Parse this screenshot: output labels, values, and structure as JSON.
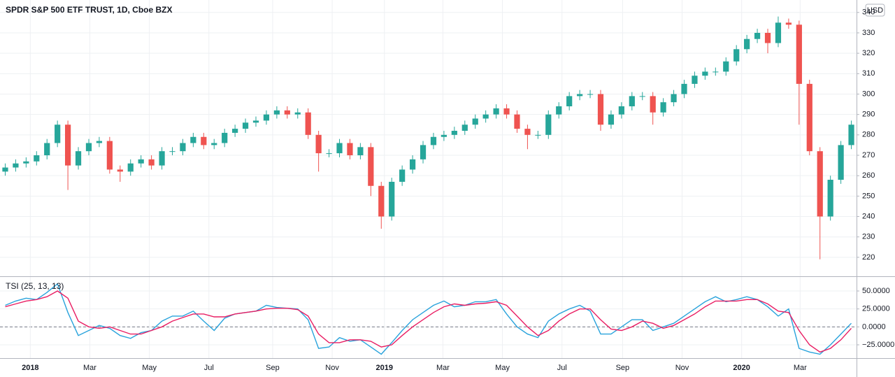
{
  "chart_data": [
    {
      "type": "candlestick",
      "title": "SPDR S&P 500 ETF TRUST, 1D, Cboe BZX",
      "currency": "USD",
      "up_color": "#26a69a",
      "down_color": "#ef5350",
      "xlim": [
        -0.5,
        81.5
      ],
      "ylim": [
        210.7,
        346.1
      ],
      "yticks": [
        220,
        230,
        240,
        250,
        260,
        270,
        280,
        290,
        300,
        310,
        320,
        330,
        340
      ],
      "open": [
        262,
        264,
        266,
        267,
        270,
        276,
        285,
        265,
        272,
        276,
        277,
        263,
        262,
        266,
        268,
        265,
        272,
        272,
        276,
        279,
        275,
        276,
        281,
        283,
        286,
        287,
        290,
        292,
        290,
        291,
        280,
        271,
        271,
        276,
        270,
        274,
        255,
        240,
        257,
        263,
        268,
        275,
        279,
        280,
        282,
        285,
        288,
        290,
        293,
        290,
        283,
        280,
        280,
        290,
        294,
        299,
        300,
        300,
        285,
        290,
        294,
        299,
        299,
        291,
        296,
        300,
        305,
        309,
        311,
        311,
        316,
        322,
        327,
        330,
        325,
        335,
        334,
        305,
        272,
        240,
        258,
        275
      ],
      "high": [
        266,
        268,
        269,
        272,
        278,
        287,
        287,
        274,
        278,
        279,
        279,
        265,
        268,
        270,
        270,
        274,
        274,
        278,
        281,
        281,
        278,
        283,
        285,
        288,
        289,
        292,
        294,
        294,
        293,
        293,
        282,
        273,
        278,
        278,
        276,
        276,
        257,
        259,
        265,
        270,
        277,
        281,
        282,
        284,
        287,
        290,
        292,
        295,
        295,
        292,
        285,
        282,
        292,
        296,
        301,
        302,
        302,
        302,
        292,
        296,
        301,
        301,
        301,
        298,
        302,
        307,
        311,
        313,
        313,
        318,
        324,
        329,
        332,
        332,
        338,
        337,
        336,
        307,
        274,
        260,
        277,
        287
      ],
      "low": [
        260,
        262,
        264,
        265,
        268,
        274,
        253,
        263,
        270,
        274,
        261,
        257,
        260,
        264,
        263,
        263,
        270,
        270,
        274,
        273,
        273,
        274,
        279,
        281,
        284,
        285,
        288,
        288,
        288,
        278,
        262,
        269,
        269,
        268,
        268,
        250,
        234,
        238,
        255,
        261,
        266,
        273,
        277,
        278,
        280,
        283,
        286,
        288,
        288,
        281,
        273,
        278,
        278,
        288,
        292,
        297,
        298,
        282,
        283,
        288,
        292,
        297,
        285,
        289,
        294,
        298,
        303,
        307,
        309,
        309,
        314,
        320,
        325,
        320,
        323,
        332,
        285,
        270,
        219,
        238,
        256,
        273
      ],
      "close": [
        264,
        266,
        267,
        270,
        276,
        285,
        265,
        272,
        276,
        277,
        263,
        262,
        266,
        268,
        265,
        272,
        272,
        276,
        279,
        275,
        276,
        281,
        283,
        286,
        287,
        290,
        292,
        290,
        291,
        280,
        271,
        271,
        276,
        270,
        274,
        255,
        240,
        257,
        263,
        268,
        275,
        279,
        280,
        282,
        285,
        288,
        290,
        293,
        290,
        283,
        280,
        280,
        290,
        294,
        299,
        300,
        300,
        285,
        290,
        294,
        299,
        299,
        291,
        296,
        300,
        305,
        309,
        311,
        311,
        316,
        322,
        327,
        330,
        325,
        335,
        334,
        305,
        272,
        240,
        258,
        275,
        285
      ]
    },
    {
      "type": "line",
      "title": "TSI (25, 13, 13)",
      "xlim": [
        -0.5,
        81.5
      ],
      "ylim": [
        -43.5,
        69.5
      ],
      "hline": 0,
      "yticks": [
        {
          "value": -25,
          "label": "−25.0000"
        },
        {
          "value": 0,
          "label": "0.0000"
        },
        {
          "value": 25,
          "label": "25.0000"
        },
        {
          "value": 50,
          "label": "50.0000"
        }
      ],
      "xticks": [
        {
          "value": 2.4,
          "label": "2018"
        },
        {
          "value": 8.1,
          "label": "Mar"
        },
        {
          "value": 13.8,
          "label": "May"
        },
        {
          "value": 19.5,
          "label": "Jul"
        },
        {
          "value": 25.6,
          "label": "Sep"
        },
        {
          "value": 31.3,
          "label": "Nov"
        },
        {
          "value": 36.3,
          "label": "2019"
        },
        {
          "value": 41.9,
          "label": "Mar"
        },
        {
          "value": 47.6,
          "label": "May"
        },
        {
          "value": 53.3,
          "label": "Jul"
        },
        {
          "value": 59.1,
          "label": "Sep"
        },
        {
          "value": 64.8,
          "label": "Nov"
        },
        {
          "value": 70.5,
          "label": "2020"
        },
        {
          "value": 76.1,
          "label": "Mar"
        }
      ],
      "series": [
        {
          "color": "#29a3dc",
          "values": [
            30,
            36,
            40,
            38,
            48,
            60,
            20,
            -12,
            -5,
            2,
            -2,
            -12,
            -16,
            -8,
            -5,
            8,
            15,
            15,
            22,
            8,
            -5,
            12,
            18,
            20,
            22,
            30,
            27,
            26,
            25,
            10,
            -30,
            -28,
            -15,
            -20,
            -18,
            -28,
            -38,
            -22,
            -5,
            10,
            20,
            30,
            36,
            28,
            30,
            35,
            35,
            38,
            18,
            0,
            -10,
            -15,
            8,
            18,
            25,
            30,
            22,
            -10,
            -10,
            0,
            10,
            10,
            -5,
            0,
            5,
            15,
            25,
            35,
            42,
            35,
            38,
            42,
            38,
            28,
            15,
            25,
            -30,
            -35,
            -38,
            -25,
            -10,
            5
          ]
        },
        {
          "color": "#e91e63",
          "values": [
            28,
            32,
            36,
            38,
            42,
            50,
            40,
            8,
            0,
            -2,
            0,
            -5,
            -10,
            -10,
            -5,
            0,
            8,
            13,
            18,
            18,
            14,
            14,
            18,
            20,
            22,
            25,
            26,
            26,
            24,
            15,
            -10,
            -22,
            -22,
            -18,
            -18,
            -20,
            -28,
            -25,
            -12,
            0,
            10,
            20,
            28,
            32,
            30,
            32,
            33,
            35,
            30,
            15,
            0,
            -12,
            -5,
            8,
            18,
            25,
            25,
            10,
            -3,
            -5,
            0,
            8,
            5,
            -2,
            2,
            10,
            18,
            28,
            36,
            36,
            36,
            38,
            38,
            32,
            22,
            20,
            -5,
            -25,
            -35,
            -30,
            -18,
            -2
          ]
        }
      ]
    }
  ]
}
